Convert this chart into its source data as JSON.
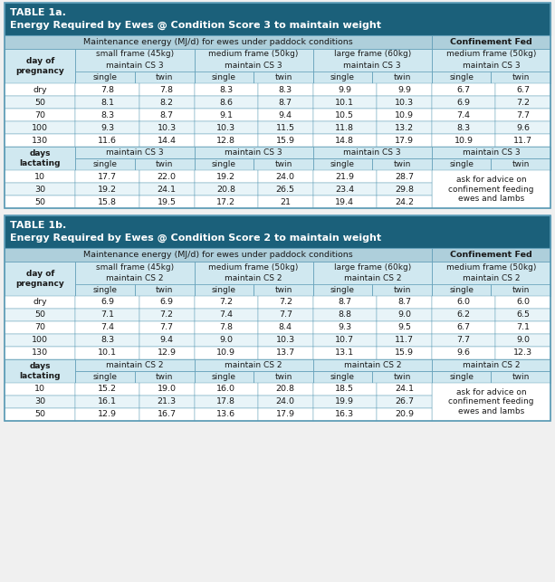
{
  "table1a": {
    "title_line1": "TABLE 1a.",
    "title_line2": "Energy Required by Ewes @ Condition Score 3 to maintain weight",
    "subtitle_paddock": "Maintenance energy (MJ/d) for ewes under paddock conditions",
    "subtitle_conf": "Confinement Fed",
    "cs": "3",
    "preg_rows": [
      [
        "dry",
        "7.8",
        "7.8",
        "8.3",
        "8.3",
        "9.9",
        "9.9",
        "6.7",
        "6.7"
      ],
      [
        "50",
        "8.1",
        "8.2",
        "8.6",
        "8.7",
        "10.1",
        "10.3",
        "6.9",
        "7.2"
      ],
      [
        "70",
        "8.3",
        "8.7",
        "9.1",
        "9.4",
        "10.5",
        "10.9",
        "7.4",
        "7.7"
      ],
      [
        "100",
        "9.3",
        "10.3",
        "10.3",
        "11.5",
        "11.8",
        "13.2",
        "8.3",
        "9.6"
      ],
      [
        "130",
        "11.6",
        "14.4",
        "12.8",
        "15.9",
        "14.8",
        "17.9",
        "10.9",
        "11.7"
      ]
    ],
    "lact_rows": [
      [
        "10",
        "17.7",
        "22.0",
        "19.2",
        "24.0",
        "21.9",
        "28.7",
        "ask for advice on\nconfinement feeding\newes and lambs"
      ],
      [
        "30",
        "19.2",
        "24.1",
        "20.8",
        "26.5",
        "23.4",
        "29.8",
        ""
      ],
      [
        "50",
        "15.8",
        "19.5",
        "17.2",
        "21",
        "19.4",
        "24.2",
        ""
      ]
    ]
  },
  "table1b": {
    "title_line1": "TABLE 1b.",
    "title_line2": "Energy Required by Ewes @ Condition Score 2 to maintain weight",
    "subtitle_paddock": "Maintenance energy (MJ/d) for ewes under paddock conditions",
    "subtitle_conf": "Confinement Fed",
    "cs": "2",
    "preg_rows": [
      [
        "dry",
        "6.9",
        "6.9",
        "7.2",
        "7.2",
        "8.7",
        "8.7",
        "6.0",
        "6.0"
      ],
      [
        "50",
        "7.1",
        "7.2",
        "7.4",
        "7.7",
        "8.8",
        "9.0",
        "6.2",
        "6.5"
      ],
      [
        "70",
        "7.4",
        "7.7",
        "7.8",
        "8.4",
        "9.3",
        "9.5",
        "6.7",
        "7.1"
      ],
      [
        "100",
        "8.3",
        "9.4",
        "9.0",
        "10.3",
        "10.7",
        "11.7",
        "7.7",
        "9.0"
      ],
      [
        "130",
        "10.1",
        "12.9",
        "10.9",
        "13.7",
        "13.1",
        "15.9",
        "9.6",
        "12.3"
      ]
    ],
    "lact_rows": [
      [
        "10",
        "15.2",
        "19.0",
        "16.0",
        "20.8",
        "18.5",
        "24.1",
        "ask for advice on\nconfinement feeding\newes and lambs"
      ],
      [
        "30",
        "16.1",
        "21.3",
        "17.8",
        "24.0",
        "19.9",
        "26.7",
        ""
      ],
      [
        "50",
        "12.9",
        "16.7",
        "13.6",
        "17.9",
        "16.3",
        "20.9",
        ""
      ]
    ]
  },
  "col_widths_raw": [
    58,
    52,
    45,
    52,
    45,
    52,
    45,
    52,
    45
  ],
  "title_bg": "#1b607a",
  "sub_header_bg": "#aecfdb",
  "col_header_bg": "#d0e8f0",
  "data_bg_odd": "#ffffff",
  "data_bg_even": "#e8f4f8",
  "lact_header_bg": "#d0e8f0",
  "border_color": "#5a9ab5",
  "cell_border": "#5a9ab5",
  "text_dark": "#1a1a1a",
  "text_white": "#ffffff"
}
